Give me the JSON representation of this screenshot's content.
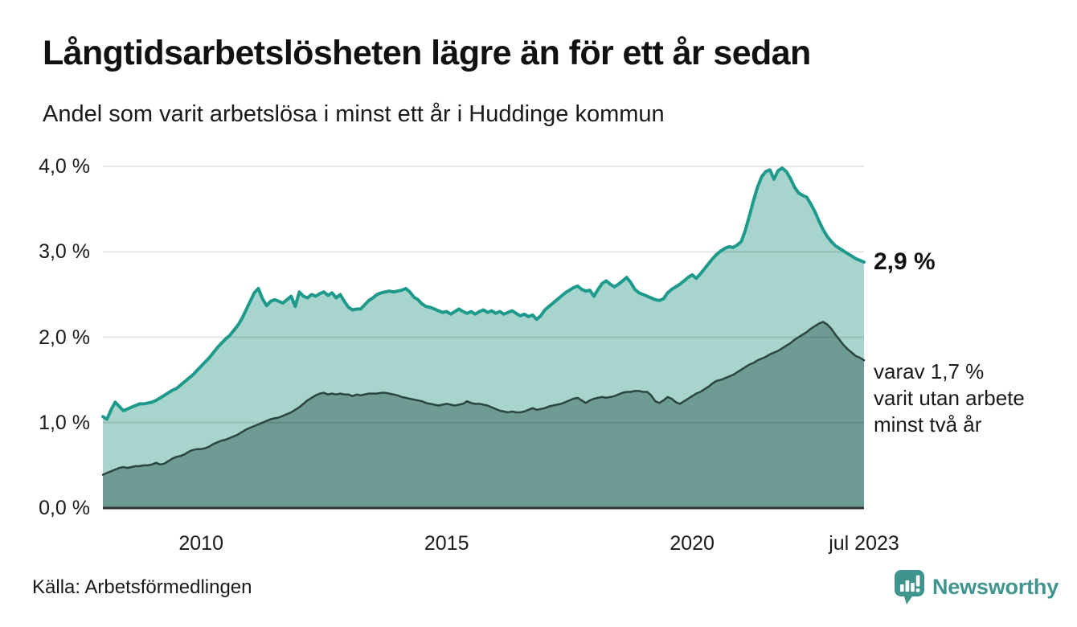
{
  "header": {
    "title": "Långtidsarbetslösheten lägre än för ett år sedan",
    "subtitle": "Andel som varit arbetslösa i minst ett år i Huddinge kommun"
  },
  "chart_data": {
    "type": "area",
    "title": "Långtidsarbetslösheten lägre än för ett år sedan",
    "subtitle": "Andel som varit arbetslösa i minst ett år i Huddinge kommun",
    "unit": "%",
    "x_start": "2008-01",
    "x_end": "2023-07",
    "x_interval": "monthly",
    "ylim": [
      0,
      4
    ],
    "grid": true,
    "legend": "none",
    "y_ticks": [
      {
        "value": 0,
        "label": "0,0 %"
      },
      {
        "value": 1,
        "label": "1,0 %"
      },
      {
        "value": 2,
        "label": "2,0 %"
      },
      {
        "value": 3,
        "label": "3,0 %"
      },
      {
        "value": 4,
        "label": "4,0 %"
      }
    ],
    "x_ticks": [
      {
        "month_index": 24,
        "label": "2010"
      },
      {
        "month_index": 84,
        "label": "2015"
      },
      {
        "month_index": 144,
        "label": "2020"
      },
      {
        "month_index": 186,
        "label": "jul 2023"
      }
    ],
    "series": [
      {
        "name": "Andel arbetslösa minst ett år",
        "line_color": "#1e9a8c",
        "fill_color": "#a7d4cc",
        "line_width": 4,
        "latest_value": 2.9,
        "values": [
          1.07,
          1.04,
          1.15,
          1.24,
          1.19,
          1.14,
          1.16,
          1.18,
          1.2,
          1.22,
          1.22,
          1.23,
          1.24,
          1.26,
          1.29,
          1.32,
          1.35,
          1.38,
          1.4,
          1.44,
          1.48,
          1.52,
          1.56,
          1.61,
          1.66,
          1.71,
          1.76,
          1.82,
          1.88,
          1.93,
          1.98,
          2.02,
          2.08,
          2.14,
          2.22,
          2.32,
          2.42,
          2.52,
          2.57,
          2.45,
          2.37,
          2.42,
          2.44,
          2.42,
          2.4,
          2.44,
          2.48,
          2.36,
          2.53,
          2.48,
          2.46,
          2.5,
          2.48,
          2.51,
          2.53,
          2.49,
          2.52,
          2.46,
          2.5,
          2.42,
          2.35,
          2.32,
          2.33,
          2.33,
          2.38,
          2.43,
          2.46,
          2.5,
          2.52,
          2.53,
          2.54,
          2.53,
          2.54,
          2.55,
          2.57,
          2.53,
          2.47,
          2.44,
          2.39,
          2.36,
          2.35,
          2.33,
          2.31,
          2.29,
          2.3,
          2.27,
          2.3,
          2.33,
          2.3,
          2.28,
          2.3,
          2.27,
          2.3,
          2.32,
          2.29,
          2.31,
          2.28,
          2.3,
          2.27,
          2.29,
          2.31,
          2.28,
          2.25,
          2.27,
          2.24,
          2.26,
          2.21,
          2.25,
          2.32,
          2.36,
          2.4,
          2.44,
          2.48,
          2.52,
          2.55,
          2.58,
          2.6,
          2.56,
          2.54,
          2.55,
          2.48,
          2.56,
          2.63,
          2.66,
          2.62,
          2.59,
          2.62,
          2.66,
          2.7,
          2.64,
          2.56,
          2.52,
          2.5,
          2.48,
          2.46,
          2.44,
          2.43,
          2.45,
          2.52,
          2.56,
          2.59,
          2.62,
          2.66,
          2.7,
          2.73,
          2.69,
          2.74,
          2.8,
          2.86,
          2.92,
          2.97,
          3.01,
          3.04,
          3.06,
          3.05,
          3.08,
          3.12,
          3.25,
          3.42,
          3.6,
          3.76,
          3.88,
          3.94,
          3.96,
          3.85,
          3.95,
          3.98,
          3.94,
          3.86,
          3.76,
          3.69,
          3.66,
          3.64,
          3.56,
          3.47,
          3.36,
          3.26,
          3.18,
          3.12,
          3.07,
          3.04,
          3.01,
          2.98,
          2.95,
          2.92,
          2.9,
          2.88
        ]
      },
      {
        "name": "Andel arbetslösa minst två år",
        "line_color": "#2b4641",
        "fill_color": "#6f9b95",
        "line_width": 2.5,
        "latest_value": 1.7,
        "values": [
          0.39,
          0.41,
          0.43,
          0.45,
          0.47,
          0.48,
          0.47,
          0.48,
          0.49,
          0.49,
          0.5,
          0.5,
          0.51,
          0.53,
          0.51,
          0.52,
          0.55,
          0.58,
          0.6,
          0.61,
          0.63,
          0.66,
          0.68,
          0.69,
          0.69,
          0.7,
          0.72,
          0.75,
          0.77,
          0.79,
          0.8,
          0.82,
          0.84,
          0.86,
          0.89,
          0.92,
          0.94,
          0.96,
          0.98,
          1.0,
          1.02,
          1.04,
          1.05,
          1.06,
          1.08,
          1.1,
          1.12,
          1.15,
          1.18,
          1.22,
          1.26,
          1.29,
          1.32,
          1.34,
          1.35,
          1.33,
          1.34,
          1.33,
          1.34,
          1.33,
          1.33,
          1.31,
          1.33,
          1.32,
          1.33,
          1.34,
          1.34,
          1.34,
          1.35,
          1.35,
          1.34,
          1.33,
          1.32,
          1.3,
          1.29,
          1.28,
          1.27,
          1.26,
          1.25,
          1.23,
          1.22,
          1.21,
          1.2,
          1.21,
          1.22,
          1.21,
          1.2,
          1.21,
          1.22,
          1.25,
          1.23,
          1.22,
          1.22,
          1.21,
          1.2,
          1.18,
          1.16,
          1.14,
          1.13,
          1.12,
          1.13,
          1.12,
          1.12,
          1.13,
          1.15,
          1.17,
          1.15,
          1.16,
          1.17,
          1.19,
          1.2,
          1.21,
          1.22,
          1.24,
          1.26,
          1.28,
          1.29,
          1.26,
          1.23,
          1.26,
          1.28,
          1.29,
          1.3,
          1.29,
          1.3,
          1.31,
          1.33,
          1.35,
          1.36,
          1.36,
          1.37,
          1.37,
          1.36,
          1.36,
          1.32,
          1.25,
          1.23,
          1.26,
          1.3,
          1.28,
          1.24,
          1.22,
          1.25,
          1.28,
          1.31,
          1.34,
          1.36,
          1.39,
          1.42,
          1.46,
          1.49,
          1.5,
          1.52,
          1.54,
          1.56,
          1.59,
          1.62,
          1.65,
          1.68,
          1.7,
          1.73,
          1.75,
          1.77,
          1.8,
          1.82,
          1.84,
          1.87,
          1.9,
          1.93,
          1.97,
          2.0,
          2.03,
          2.06,
          2.1,
          2.13,
          2.16,
          2.18,
          2.15,
          2.1,
          2.03,
          1.97,
          1.91,
          1.86,
          1.82,
          1.78,
          1.76,
          1.73
        ]
      }
    ],
    "annotations": {
      "latest": "2,9 %",
      "secondary_line1": "varav 1,7 %",
      "secondary_line2": "varit utan arbete",
      "secondary_line3": "minst två år"
    }
  },
  "footer": {
    "source": "Källa: Arbetsförmedlingen",
    "brand": "Newsworthy"
  },
  "colors": {
    "accent_teal": "#1e9a8c",
    "fill_light": "#a7d4cc",
    "fill_dark": "#6f9b95",
    "line_dark": "#2b4641",
    "brand_teal": "#3f958d",
    "text": "#1a1a1a",
    "grid": "#e1e1e1",
    "axis": "#333333"
  }
}
